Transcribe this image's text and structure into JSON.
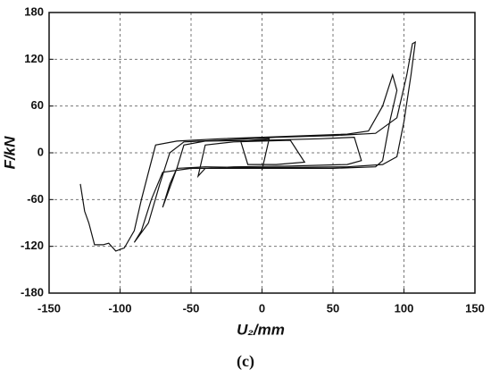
{
  "chart_data": {
    "type": "line",
    "xlabel": "U₂/mm",
    "ylabel": "F/kN",
    "caption": "(c)",
    "x": [
      -128,
      -125,
      -122,
      -118,
      -112,
      -108,
      -103,
      -97,
      -90,
      -85,
      -80,
      -75,
      -60,
      -30,
      0,
      30,
      60,
      75,
      85,
      92,
      95,
      90,
      85,
      80,
      50,
      0,
      -50,
      -70,
      -78,
      -85,
      -90,
      -80,
      -72,
      -65,
      -55,
      -20,
      10,
      50,
      80,
      95,
      102,
      106,
      108,
      105,
      100,
      95,
      85,
      60,
      0,
      -40,
      -60,
      -65,
      -70,
      -60,
      -55,
      -40,
      0,
      40,
      65,
      70,
      60,
      20,
      -20,
      -40,
      -45,
      -40,
      -20,
      20,
      30,
      10,
      -10,
      -15,
      5,
      0
    ],
    "series": [
      {
        "color": "#111111",
        "values": [
          -40,
          -75,
          -90,
          -118,
          -118,
          -116,
          -126,
          -122,
          -100,
          -60,
          -25,
          10,
          15,
          18,
          20,
          22,
          24,
          28,
          60,
          100,
          80,
          40,
          -10,
          -18,
          -20,
          -20,
          -20,
          -25,
          -60,
          -100,
          -115,
          -90,
          -40,
          0,
          14,
          17,
          20,
          22,
          25,
          45,
          100,
          140,
          142,
          100,
          40,
          -5,
          -15,
          -18,
          -19,
          -18,
          -20,
          -40,
          -70,
          -20,
          10,
          15,
          16,
          18,
          20,
          -10,
          -15,
          -17,
          -18,
          -20,
          -30,
          10,
          14,
          16,
          -12,
          -15,
          -15,
          15,
          18,
          -22
        ]
      }
    ],
    "xlim": [
      -150,
      150
    ],
    "xticks": [
      -150,
      -100,
      -50,
      0,
      50,
      100,
      150
    ],
    "ylim": [
      -180,
      180
    ],
    "yticks": [
      -180,
      -120,
      -60,
      0,
      60,
      120,
      180
    ],
    "grid": true
  }
}
